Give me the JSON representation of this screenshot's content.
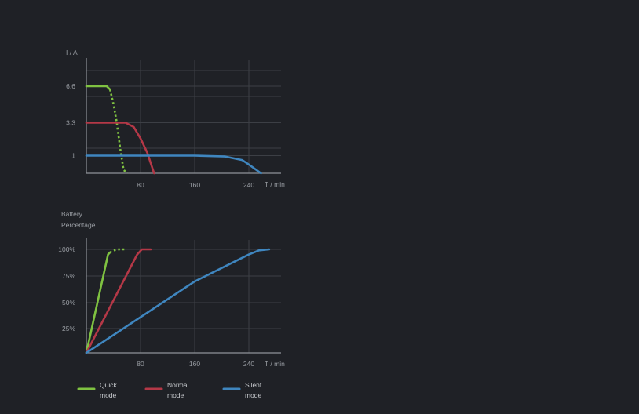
{
  "chart_data": [
    {
      "type": "line",
      "ylabel": "I / A",
      "xlabel": "T / min",
      "x_ticks": [
        80,
        160,
        240
      ],
      "y_ticks": [
        "6.6",
        "3.3",
        "1"
      ],
      "xlim": [
        0,
        290
      ],
      "grid": true,
      "series": [
        {
          "name": "Quick mode",
          "color": "#7fc241",
          "points": [
            [
              0,
              6.6
            ],
            [
              30,
              6.6
            ],
            [
              35,
              6.3
            ]
          ],
          "tail": [
            [
              35,
              6.3
            ],
            [
              40,
              5.0
            ],
            [
              45,
              3.3
            ],
            [
              50,
              1.5
            ],
            [
              55,
              0.2
            ],
            [
              60,
              0
            ]
          ]
        },
        {
          "name": "Normal mode",
          "color": "#b43847",
          "points": [
            [
              0,
              3.3
            ],
            [
              58,
              3.3
            ],
            [
              70,
              3.0
            ],
            [
              80,
              2.2
            ],
            [
              90,
              1.2
            ],
            [
              100,
              0
            ]
          ],
          "tail": []
        },
        {
          "name": "Silent mode",
          "color": "#3f86bf",
          "points": [
            [
              0,
              1
            ],
            [
              160,
              1
            ],
            [
              205,
              0.95
            ],
            [
              230,
              0.75
            ],
            [
              240,
              0.5
            ],
            [
              258,
              0
            ]
          ],
          "tail": []
        }
      ]
    },
    {
      "type": "line",
      "ylabel": [
        "Battery",
        "Percentage"
      ],
      "xlabel": "T / min",
      "x_ticks": [
        80,
        160,
        240
      ],
      "y_ticks": [
        "100%",
        "75%",
        "50%",
        "25%"
      ],
      "xlim": [
        0,
        290
      ],
      "ylim": [
        0,
        100
      ],
      "grid": true,
      "legend_position": "bottom",
      "series": [
        {
          "name": "Quick mode",
          "color": "#7fc241",
          "points": [
            [
              0,
              0
            ],
            [
              32,
              95
            ],
            [
              35,
              97
            ]
          ],
          "tail": [
            [
              35,
              97
            ],
            [
              40,
              99
            ],
            [
              48,
              100
            ],
            [
              58,
              100
            ]
          ]
        },
        {
          "name": "Normal mode",
          "color": "#b43847",
          "points": [
            [
              0,
              0
            ],
            [
              75,
              95
            ],
            [
              82,
              100
            ],
            [
              95,
              100
            ]
          ],
          "tail": []
        },
        {
          "name": "Silent mode",
          "color": "#3f86bf",
          "points": [
            [
              0,
              0
            ],
            [
              160,
              69
            ],
            [
              240,
              95
            ],
            [
              255,
              99
            ],
            [
              270,
              100
            ]
          ],
          "tail": []
        }
      ]
    }
  ],
  "legend": [
    {
      "line1": "Quick",
      "line2": "mode",
      "color": "#7fc241"
    },
    {
      "line1": "Normal",
      "line2": "mode",
      "color": "#b43847"
    },
    {
      "line1": "Silent",
      "line2": "mode",
      "color": "#3f86bf"
    }
  ]
}
